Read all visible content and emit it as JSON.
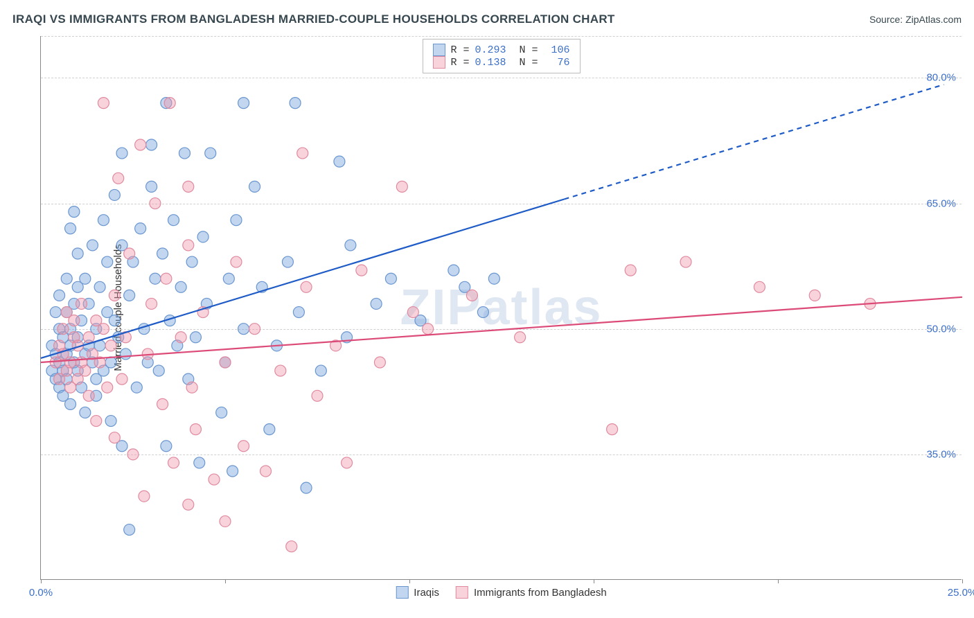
{
  "title": "IRAQI VS IMMIGRANTS FROM BANGLADESH MARRIED-COUPLE HOUSEHOLDS CORRELATION CHART",
  "source": "Source: ZipAtlas.com",
  "ylabel": "Married-couple Households",
  "watermark": "ZIPatlas",
  "chart": {
    "type": "scatter",
    "xlim": [
      0,
      25
    ],
    "ylim": [
      20,
      85
    ],
    "x_ticks": [
      0,
      5,
      10,
      15,
      20,
      25
    ],
    "x_tick_labels": [
      "0.0%",
      "",
      "",
      "",
      "",
      "25.0%"
    ],
    "y_gridlines": [
      35,
      50,
      65,
      80
    ],
    "y_tick_labels": [
      "35.0%",
      "50.0%",
      "65.0%",
      "80.0%"
    ],
    "background_color": "#ffffff",
    "grid_color": "#d0d0d0",
    "axis_color": "#888888",
    "label_color": "#3b6fc9",
    "marker_radius": 8,
    "marker_stroke_width": 1.2,
    "series": [
      {
        "name": "Iraqis",
        "fill": "rgba(120,165,220,0.45)",
        "stroke": "#6a96d0",
        "trend_color": "#1e5bc6",
        "trend_width": 2.2,
        "trend": {
          "x1": 0,
          "y1": 46.5,
          "x2": 14.2,
          "y2": 65.5,
          "x2_ext": 24.5,
          "y2_ext": 79.2,
          "dash_from": 14.2
        },
        "R": "0.293",
        "N": "106",
        "points": [
          [
            0.3,
            45
          ],
          [
            0.3,
            48
          ],
          [
            0.4,
            44
          ],
          [
            0.4,
            52
          ],
          [
            0.4,
            47
          ],
          [
            0.5,
            43
          ],
          [
            0.5,
            50
          ],
          [
            0.5,
            46
          ],
          [
            0.5,
            54
          ],
          [
            0.6,
            49
          ],
          [
            0.6,
            45
          ],
          [
            0.6,
            42
          ],
          [
            0.7,
            52
          ],
          [
            0.7,
            47
          ],
          [
            0.7,
            56
          ],
          [
            0.7,
            44
          ],
          [
            0.8,
            62
          ],
          [
            0.8,
            48
          ],
          [
            0.8,
            50
          ],
          [
            0.8,
            41
          ],
          [
            0.9,
            64
          ],
          [
            0.9,
            46
          ],
          [
            0.9,
            53
          ],
          [
            1.0,
            49
          ],
          [
            1.0,
            55
          ],
          [
            1.0,
            45
          ],
          [
            1.0,
            59
          ],
          [
            1.1,
            43
          ],
          [
            1.1,
            51
          ],
          [
            1.2,
            47
          ],
          [
            1.2,
            56
          ],
          [
            1.2,
            40
          ],
          [
            1.3,
            48
          ],
          [
            1.3,
            53
          ],
          [
            1.4,
            46
          ],
          [
            1.4,
            60
          ],
          [
            1.5,
            44
          ],
          [
            1.5,
            50
          ],
          [
            1.5,
            42
          ],
          [
            1.6,
            55
          ],
          [
            1.6,
            48
          ],
          [
            1.7,
            63
          ],
          [
            1.7,
            45
          ],
          [
            1.8,
            52
          ],
          [
            1.8,
            58
          ],
          [
            1.9,
            46
          ],
          [
            1.9,
            39
          ],
          [
            2.0,
            51
          ],
          [
            2.0,
            66
          ],
          [
            2.1,
            49
          ],
          [
            2.2,
            60
          ],
          [
            2.2,
            36
          ],
          [
            2.2,
            71
          ],
          [
            2.3,
            47
          ],
          [
            2.4,
            54
          ],
          [
            2.4,
            26
          ],
          [
            2.5,
            58
          ],
          [
            2.6,
            43
          ],
          [
            2.7,
            62
          ],
          [
            2.8,
            50
          ],
          [
            2.9,
            46
          ],
          [
            3.0,
            67
          ],
          [
            3.0,
            72
          ],
          [
            3.1,
            56
          ],
          [
            3.2,
            45
          ],
          [
            3.3,
            59
          ],
          [
            3.4,
            36
          ],
          [
            3.4,
            77
          ],
          [
            3.5,
            51
          ],
          [
            3.6,
            63
          ],
          [
            3.7,
            48
          ],
          [
            3.8,
            55
          ],
          [
            3.9,
            71
          ],
          [
            4.0,
            44
          ],
          [
            4.1,
            58
          ],
          [
            4.2,
            49
          ],
          [
            4.3,
            34
          ],
          [
            4.4,
            61
          ],
          [
            4.5,
            53
          ],
          [
            4.6,
            71
          ],
          [
            4.9,
            40
          ],
          [
            5.0,
            46
          ],
          [
            5.1,
            56
          ],
          [
            5.2,
            33
          ],
          [
            5.3,
            63
          ],
          [
            5.5,
            77
          ],
          [
            5.5,
            50
          ],
          [
            5.8,
            67
          ],
          [
            6.0,
            55
          ],
          [
            6.2,
            38
          ],
          [
            6.4,
            48
          ],
          [
            6.7,
            58
          ],
          [
            6.9,
            77
          ],
          [
            7.0,
            52
          ],
          [
            7.2,
            31
          ],
          [
            7.6,
            45
          ],
          [
            8.1,
            70
          ],
          [
            8.3,
            49
          ],
          [
            8.4,
            60
          ],
          [
            9.1,
            53
          ],
          [
            9.5,
            56
          ],
          [
            10.3,
            51
          ],
          [
            11.2,
            57
          ],
          [
            11.5,
            55
          ],
          [
            12.0,
            52
          ],
          [
            12.3,
            56
          ]
        ]
      },
      {
        "name": "Immigrants from Bangladesh",
        "fill": "rgba(240,150,170,0.42)",
        "stroke": "#e08aa0",
        "trend_color": "#dc4a78",
        "trend_width": 2.2,
        "trend": {
          "x1": 0,
          "y1": 46.0,
          "x2": 25,
          "y2": 53.8
        },
        "R": "0.138",
        "N": "76",
        "points": [
          [
            0.4,
            46
          ],
          [
            0.5,
            48
          ],
          [
            0.5,
            44
          ],
          [
            0.6,
            50
          ],
          [
            0.6,
            47
          ],
          [
            0.7,
            45
          ],
          [
            0.7,
            52
          ],
          [
            0.8,
            46
          ],
          [
            0.8,
            43
          ],
          [
            0.9,
            49
          ],
          [
            0.9,
            51
          ],
          [
            1.0,
            44
          ],
          [
            1.0,
            48
          ],
          [
            1.1,
            46
          ],
          [
            1.1,
            53
          ],
          [
            1.2,
            45
          ],
          [
            1.3,
            49
          ],
          [
            1.3,
            42
          ],
          [
            1.4,
            47
          ],
          [
            1.5,
            51
          ],
          [
            1.5,
            39
          ],
          [
            1.6,
            46
          ],
          [
            1.7,
            50
          ],
          [
            1.7,
            77
          ],
          [
            1.8,
            43
          ],
          [
            1.9,
            48
          ],
          [
            2.0,
            54
          ],
          [
            2.0,
            37
          ],
          [
            2.1,
            68
          ],
          [
            2.2,
            44
          ],
          [
            2.3,
            49
          ],
          [
            2.4,
            59
          ],
          [
            2.5,
            35
          ],
          [
            2.7,
            72
          ],
          [
            2.8,
            30
          ],
          [
            2.9,
            47
          ],
          [
            3.0,
            53
          ],
          [
            3.1,
            65
          ],
          [
            3.3,
            41
          ],
          [
            3.4,
            56
          ],
          [
            3.5,
            77
          ],
          [
            3.6,
            34
          ],
          [
            3.8,
            49
          ],
          [
            4.0,
            60
          ],
          [
            4.0,
            29
          ],
          [
            4.0,
            67
          ],
          [
            4.1,
            43
          ],
          [
            4.2,
            38
          ],
          [
            4.4,
            52
          ],
          [
            4.7,
            32
          ],
          [
            5.0,
            46
          ],
          [
            5.0,
            27
          ],
          [
            5.3,
            58
          ],
          [
            5.5,
            36
          ],
          [
            5.8,
            50
          ],
          [
            6.1,
            33
          ],
          [
            6.5,
            45
          ],
          [
            6.8,
            24
          ],
          [
            7.1,
            71
          ],
          [
            7.2,
            55
          ],
          [
            7.5,
            42
          ],
          [
            8.0,
            48
          ],
          [
            8.3,
            34
          ],
          [
            8.7,
            57
          ],
          [
            9.2,
            46
          ],
          [
            9.8,
            67
          ],
          [
            10.1,
            52
          ],
          [
            10.5,
            50
          ],
          [
            11.7,
            54
          ],
          [
            13.0,
            49
          ],
          [
            15.5,
            38
          ],
          [
            17.5,
            58
          ],
          [
            19.5,
            55
          ],
          [
            21.0,
            54
          ],
          [
            22.5,
            53
          ],
          [
            16.0,
            57
          ]
        ]
      }
    ]
  },
  "legend_top": {
    "rows": [
      {
        "swatch_fill": "rgba(120,165,220,0.45)",
        "swatch_stroke": "#6a96d0",
        "r_label": "R =",
        "r_val": "0.293",
        "n_label": "N =",
        "n_val": "106"
      },
      {
        "swatch_fill": "rgba(240,150,170,0.42)",
        "swatch_stroke": "#e08aa0",
        "r_label": "R =",
        "r_val": "0.138",
        "n_label": "N =",
        "n_val": " 76"
      }
    ]
  },
  "legend_bottom": {
    "items": [
      {
        "swatch_fill": "rgba(120,165,220,0.45)",
        "swatch_stroke": "#6a96d0",
        "label": "Iraqis"
      },
      {
        "swatch_fill": "rgba(240,150,170,0.42)",
        "swatch_stroke": "#e08aa0",
        "label": "Immigrants from Bangladesh"
      }
    ]
  }
}
